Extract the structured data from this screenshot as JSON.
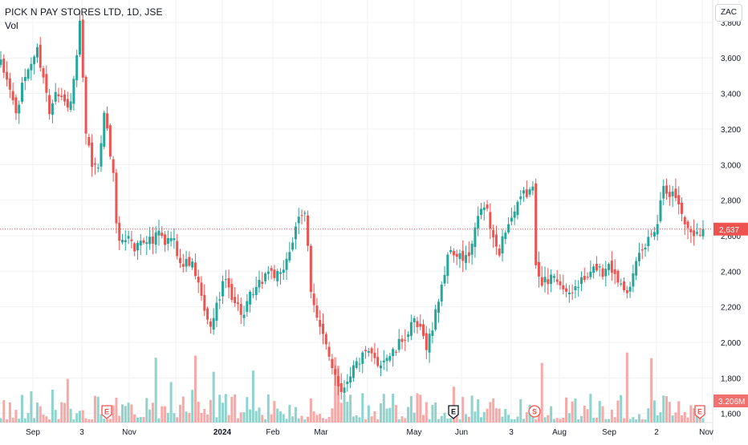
{
  "header": {
    "title": "PICK N PAY STORES LTD, 1D, JSE",
    "volume_label": "Vol",
    "currency": "ZAC"
  },
  "colors": {
    "up": "#26a69a",
    "down": "#ef5350",
    "up_volume": "#8fd3cc",
    "down_volume": "#f7a9a7",
    "grid": "#eef0f3",
    "axis_text": "#131722",
    "price_line": "#ef5350",
    "volume_badge": "#f0716e"
  },
  "chart_data": {
    "type": "candlestick",
    "symbol": "PICK N PAY STORES LTD",
    "interval": "1D",
    "exchange": "JSE",
    "currency": "ZAC",
    "ylim": [
      1540,
      3840
    ],
    "y_ticks": [
      1600,
      1800,
      2000,
      2200,
      2400,
      2600,
      2800,
      3000,
      3200,
      3400,
      3600,
      3800
    ],
    "y_tick_labels": [
      "1,600",
      "1,800",
      "2,000",
      "2,200",
      "2,400",
      "2,600",
      "2,800",
      "3,000",
      "3,200",
      "3,400",
      "3,600",
      "3,800"
    ],
    "x_tick_labels": [
      "Sep",
      "3",
      "Nov",
      "2024",
      "Feb",
      "Mar",
      "May",
      "Jun",
      "3",
      "Aug",
      "Sep",
      "2",
      "Nov"
    ],
    "last_price": 2637,
    "last_price_label": "2,637",
    "last_volume_label": "3.206M",
    "event_markers": [
      {
        "label": "E",
        "position": "Oct 2023",
        "style": "red"
      },
      {
        "label": "E",
        "position": "May 2024",
        "style": "dark"
      },
      {
        "label": "S",
        "position": "Jul 2024",
        "style": "red"
      },
      {
        "label": "E",
        "position": "Oct 2024",
        "style": "red"
      }
    ],
    "anchors": [
      [
        0,
        3560
      ],
      [
        3,
        3430
      ],
      [
        5,
        3280
      ],
      [
        8,
        3500
      ],
      [
        10,
        3580
      ],
      [
        12,
        3640
      ],
      [
        14,
        3500
      ],
      [
        16,
        3290
      ],
      [
        18,
        3440
      ],
      [
        20,
        3380
      ],
      [
        22,
        3310
      ],
      [
        24,
        3450
      ],
      [
        26,
        3780
      ],
      [
        28,
        3150
      ],
      [
        30,
        3000
      ],
      [
        32,
        2960
      ],
      [
        34,
        3320
      ],
      [
        36,
        3050
      ],
      [
        37,
        2970
      ],
      [
        38,
        2640
      ],
      [
        40,
        2560
      ],
      [
        42,
        2610
      ],
      [
        44,
        2520
      ],
      [
        46,
        2580
      ],
      [
        48,
        2590
      ],
      [
        50,
        2560
      ],
      [
        52,
        2620
      ],
      [
        54,
        2540
      ],
      [
        56,
        2600
      ],
      [
        58,
        2520
      ],
      [
        60,
        2430
      ],
      [
        62,
        2460
      ],
      [
        64,
        2390
      ],
      [
        66,
        2240
      ],
      [
        68,
        2100
      ],
      [
        70,
        2130
      ],
      [
        72,
        2270
      ],
      [
        74,
        2350
      ],
      [
        76,
        2270
      ],
      [
        78,
        2200
      ],
      [
        80,
        2150
      ],
      [
        82,
        2250
      ],
      [
        84,
        2290
      ],
      [
        86,
        2350
      ],
      [
        88,
        2410
      ],
      [
        90,
        2380
      ],
      [
        92,
        2360
      ],
      [
        94,
        2480
      ],
      [
        96,
        2570
      ],
      [
        98,
        2680
      ],
      [
        100,
        2720
      ],
      [
        101,
        2560
      ],
      [
        102,
        2310
      ],
      [
        104,
        2130
      ],
      [
        106,
        2020
      ],
      [
        108,
        1920
      ],
      [
        110,
        1830
      ],
      [
        112,
        1720
      ],
      [
        114,
        1800
      ],
      [
        116,
        1860
      ],
      [
        118,
        1900
      ],
      [
        120,
        1930
      ],
      [
        122,
        1920
      ],
      [
        124,
        1880
      ],
      [
        126,
        1910
      ],
      [
        128,
        1930
      ],
      [
        130,
        1950
      ],
      [
        132,
        2020
      ],
      [
        134,
        2050
      ],
      [
        136,
        2110
      ],
      [
        138,
        2060
      ],
      [
        140,
        1990
      ],
      [
        142,
        2080
      ],
      [
        144,
        2250
      ],
      [
        146,
        2400
      ],
      [
        148,
        2530
      ],
      [
        150,
        2480
      ],
      [
        152,
        2470
      ],
      [
        154,
        2480
      ],
      [
        156,
        2620
      ],
      [
        158,
        2760
      ],
      [
        160,
        2740
      ],
      [
        162,
        2560
      ],
      [
        164,
        2520
      ],
      [
        166,
        2640
      ],
      [
        168,
        2700
      ],
      [
        170,
        2760
      ],
      [
        172,
        2830
      ],
      [
        174,
        2850
      ],
      [
        175,
        2850
      ],
      [
        176,
        2460
      ],
      [
        178,
        2350
      ],
      [
        180,
        2330
      ],
      [
        182,
        2390
      ],
      [
        184,
        2340
      ],
      [
        186,
        2250
      ],
      [
        188,
        2290
      ],
      [
        190,
        2330
      ],
      [
        192,
        2350
      ],
      [
        194,
        2380
      ],
      [
        196,
        2430
      ],
      [
        198,
        2390
      ],
      [
        200,
        2460
      ],
      [
        202,
        2370
      ],
      [
        204,
        2340
      ],
      [
        206,
        2310
      ],
      [
        208,
        2370
      ],
      [
        210,
        2480
      ],
      [
        212,
        2540
      ],
      [
        214,
        2620
      ],
      [
        216,
        2680
      ],
      [
        218,
        2900
      ],
      [
        220,
        2840
      ],
      [
        222,
        2820
      ],
      [
        224,
        2730
      ],
      [
        226,
        2630
      ],
      [
        228,
        2620
      ],
      [
        230,
        2637
      ]
    ],
    "volume_range_M": [
      0.5,
      10
    ],
    "volume_scale_max_M": 10
  }
}
